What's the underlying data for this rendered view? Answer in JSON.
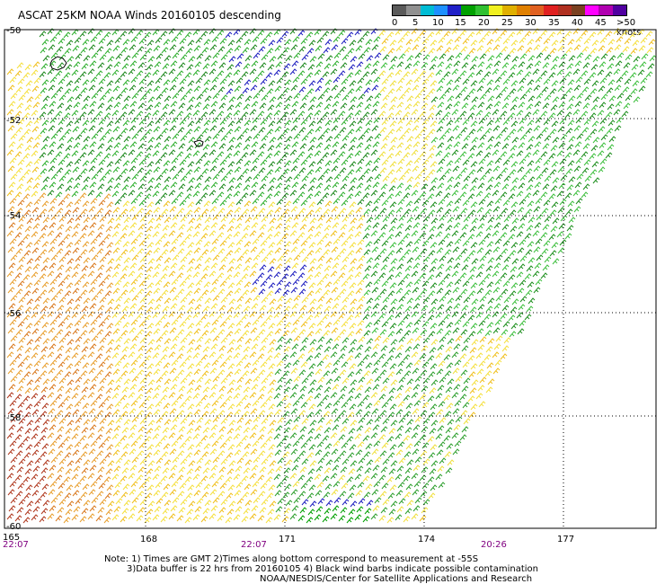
{
  "title": "ASCAT 25KM NOAA Winds 20160105 descending",
  "legend": {
    "colors": [
      "#5a5a5a",
      "#909090",
      "#00bcd4",
      "#1e90ff",
      "#2020c8",
      "#00a000",
      "#30c030",
      "#f0f020",
      "#e0b000",
      "#e08000",
      "#e06020",
      "#e02020",
      "#b03020",
      "#7a4020",
      "#ff00ff",
      "#b000b0",
      "#5000a0"
    ],
    "ticks": [
      "0",
      "5",
      "10",
      "15",
      "20",
      "25",
      "30",
      "35",
      "40",
      "45",
      ">50 knots"
    ]
  },
  "map": {
    "lat_labels": [
      "-50",
      "-52",
      "-54",
      "-56",
      "-58",
      "-60"
    ],
    "lon_labels": [
      "165",
      "168",
      "171",
      "174",
      "177"
    ],
    "time_labels": [
      "22:07",
      "22:07",
      "20:26"
    ]
  },
  "notes": {
    "line1": "Note: 1) Times are GMT 2)Times along bottom correspond to measurement at -55S",
    "line2": "3)Data buffer is 22 hrs from 20160105 4) Black wind barbs indicate possible contamination",
    "line3": "NOAA/NESDIS/Center for Satellite Applications and Research"
  }
}
